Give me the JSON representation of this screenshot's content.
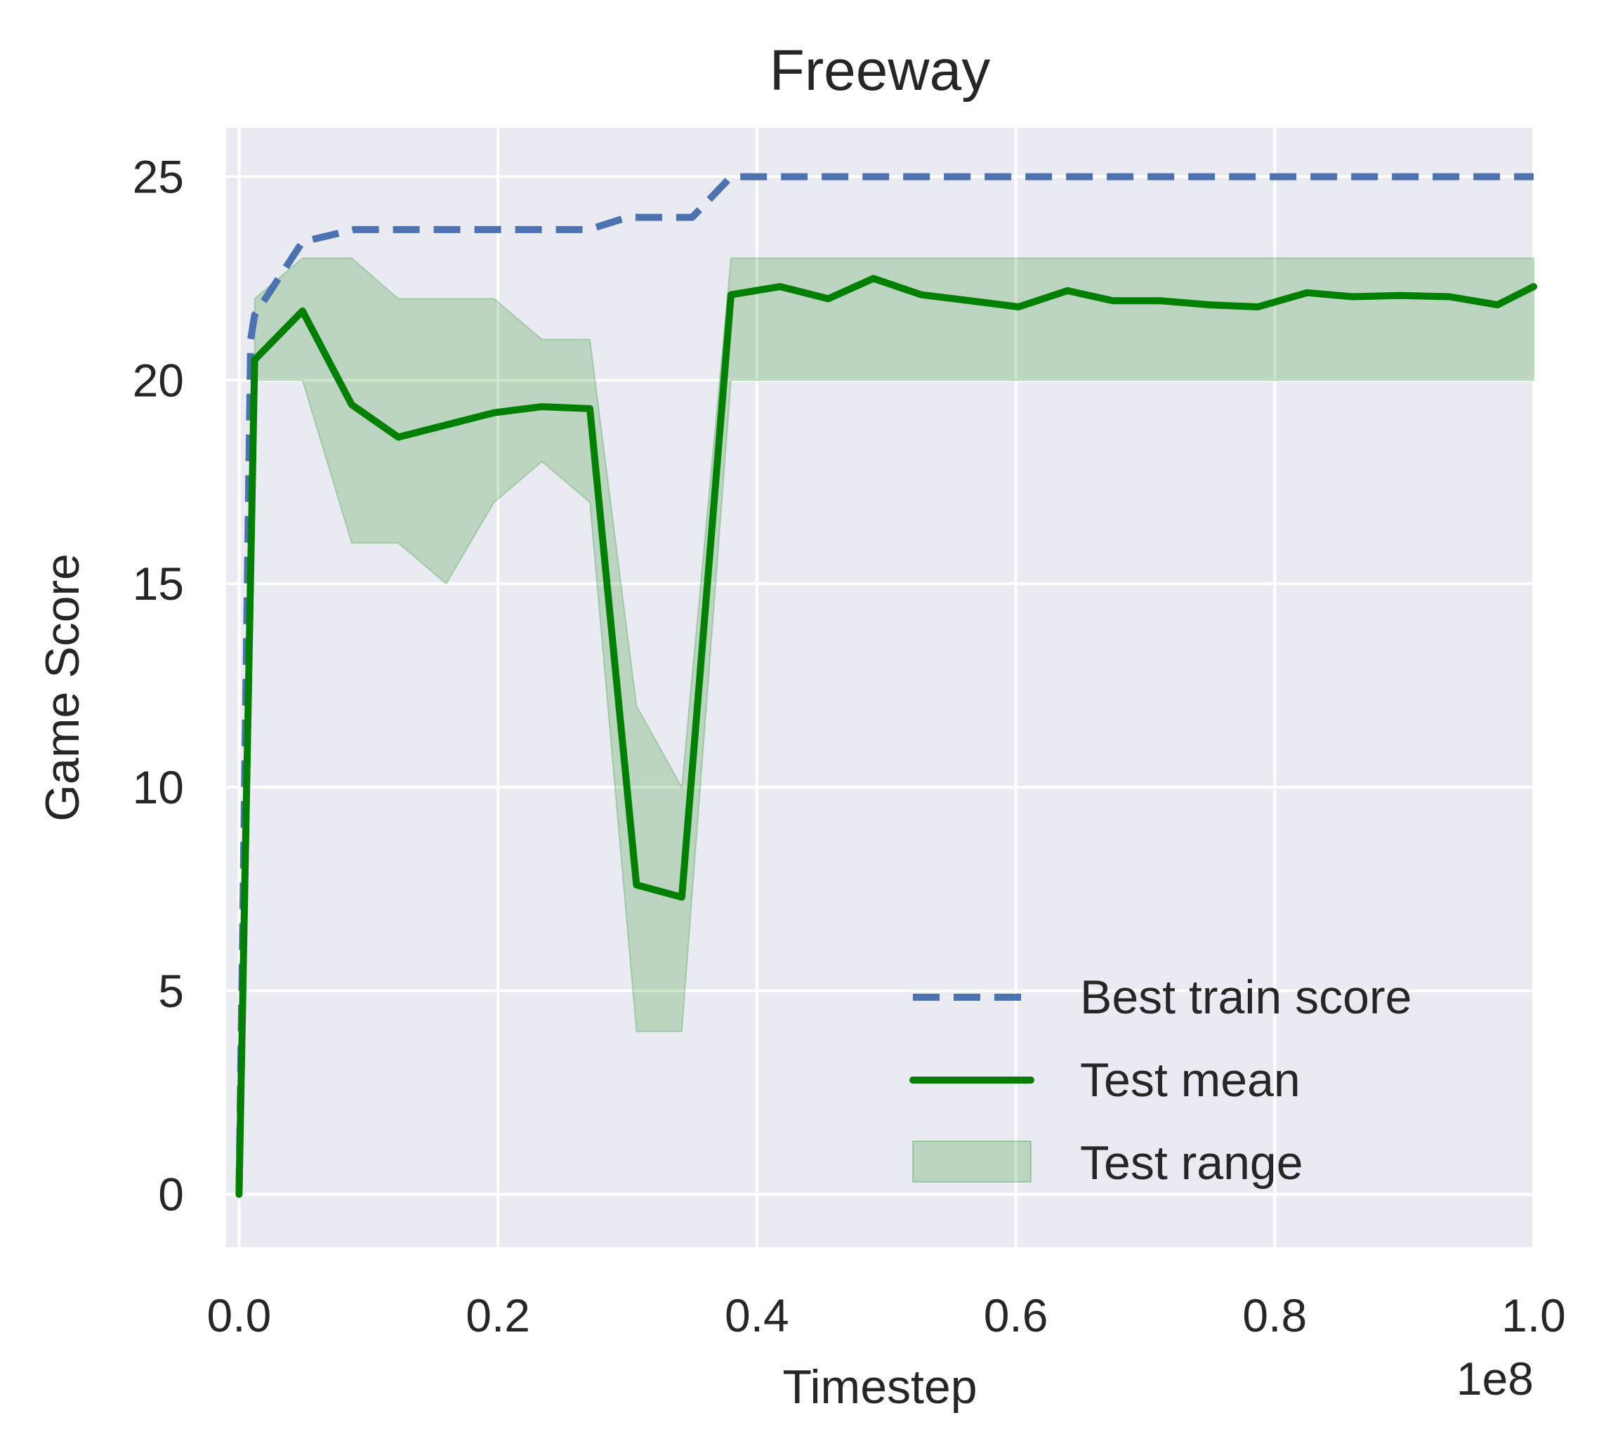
{
  "chart_data": {
    "type": "line",
    "title": "Freeway",
    "xlabel": "Timestep",
    "ylabel": "Game Score",
    "x_offset_label": "1e8",
    "xlim": [
      -0.01,
      1.0
    ],
    "ylim": [
      -1.3,
      26.2
    ],
    "x_ticks": [
      0.0,
      0.2,
      0.4,
      0.6,
      0.8,
      1.0
    ],
    "x_tick_labels": [
      "0.0",
      "0.2",
      "0.4",
      "0.6",
      "0.8",
      "1.0"
    ],
    "y_ticks": [
      0,
      5,
      10,
      15,
      20,
      25
    ],
    "y_tick_labels": [
      "0",
      "5",
      "10",
      "15",
      "20",
      "25"
    ],
    "grid": true,
    "legend_position": "lower-right",
    "colors": {
      "background": "#eaeaf2",
      "grid": "#ffffff",
      "best_train": "#4c72b0",
      "test_mean": "#008000",
      "test_range": "#008000"
    },
    "series": [
      {
        "name": "Best train score",
        "style": "dashed",
        "x": [
          0.0,
          0.009,
          0.012,
          0.049,
          0.089,
          0.12,
          0.16,
          0.2,
          0.24,
          0.27,
          0.3,
          0.35,
          0.38,
          0.42,
          0.6,
          0.8,
          1.0
        ],
        "y": [
          0,
          21,
          21.6,
          23.4,
          23.7,
          23.7,
          23.7,
          23.7,
          23.7,
          23.7,
          24.0,
          24.0,
          25.0,
          25.0,
          25.0,
          25.0,
          25.0
        ]
      },
      {
        "name": "Test mean",
        "style": "solid",
        "x": [
          0.0,
          0.012,
          0.049,
          0.087,
          0.123,
          0.16,
          0.197,
          0.234,
          0.271,
          0.307,
          0.342,
          0.38,
          0.418,
          0.455,
          0.49,
          0.527,
          0.565,
          0.602,
          0.64,
          0.675,
          0.712,
          0.75,
          0.787,
          0.825,
          0.86,
          0.897,
          0.935,
          0.972,
          1.0
        ],
        "y": [
          0,
          20.5,
          21.7,
          19.4,
          18.6,
          18.9,
          19.2,
          19.35,
          19.3,
          7.6,
          7.3,
          22.1,
          22.3,
          22.0,
          22.5,
          22.1,
          21.95,
          21.8,
          22.2,
          21.95,
          21.95,
          21.85,
          21.8,
          22.15,
          22.05,
          22.08,
          22.05,
          21.85,
          22.3
        ]
      }
    ],
    "range": {
      "name": "Test range",
      "x": [
        0.012,
        0.049,
        0.087,
        0.123,
        0.16,
        0.197,
        0.234,
        0.271,
        0.307,
        0.342,
        0.38,
        1.0
      ],
      "lower": [
        20,
        20,
        16,
        16,
        15,
        17,
        18,
        17,
        4,
        4,
        20,
        20
      ],
      "upper": [
        22,
        23,
        23,
        22,
        22,
        22,
        21,
        21,
        12,
        10,
        23,
        23
      ]
    }
  }
}
